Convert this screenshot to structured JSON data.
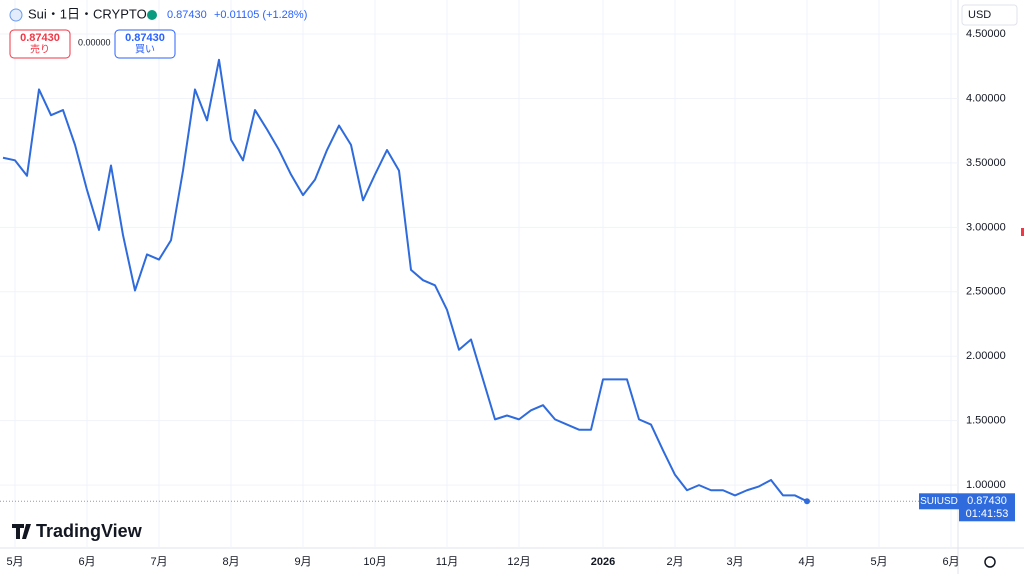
{
  "header": {
    "symbol": "Sui・1日・CRYPTO",
    "price": "0.87430",
    "change": "+0.01105 (+1.28%)",
    "sell_price": "0.87430",
    "sell_label": "売り",
    "spread": "0.00000",
    "buy_price": "0.87430",
    "buy_label": "買い",
    "currency": "USD",
    "logo": "TradingView",
    "last_price": "0.87430",
    "countdown": "01:41:53"
  },
  "chart_data": {
    "type": "line",
    "categories": [
      null,
      "5月",
      null,
      null,
      null,
      null,
      null,
      "6月",
      null,
      null,
      null,
      null,
      null,
      "7月",
      null,
      null,
      null,
      null,
      null,
      "8月",
      null,
      null,
      null,
      null,
      null,
      "9月",
      null,
      null,
      null,
      null,
      null,
      "10月",
      null,
      null,
      null,
      null,
      null,
      "11月",
      null,
      null,
      null,
      null,
      null,
      "12月",
      null,
      null,
      null,
      null,
      null,
      null,
      "2026",
      null,
      null,
      null,
      null,
      null,
      "2月",
      null,
      null,
      null,
      null,
      "3月",
      null,
      null,
      null,
      null,
      null,
      "4月",
      null,
      null,
      null,
      null,
      null,
      "5月",
      null,
      null,
      null,
      null,
      null,
      "6月"
    ],
    "series": [
      {
        "name": "SUIUSD",
        "color": "#2f6bdc",
        "values": [
          3.54,
          3.52,
          3.4,
          4.07,
          3.87,
          3.91,
          3.64,
          3.29,
          2.98,
          3.48,
          2.94,
          2.51,
          2.79,
          2.75,
          2.9,
          3.44,
          4.07,
          3.83,
          4.3,
          3.68,
          3.52,
          3.91,
          3.76,
          3.6,
          3.41,
          3.25,
          3.37,
          3.6,
          3.79,
          3.64,
          3.21,
          3.41,
          3.6,
          3.44,
          2.67,
          2.59,
          2.55,
          2.36,
          2.05,
          2.13,
          1.82,
          1.51,
          1.54,
          1.51,
          1.58,
          1.62,
          1.51,
          1.47,
          1.43,
          1.43,
          1.82,
          1.82,
          1.82,
          1.51,
          1.47,
          1.27,
          1.08,
          0.96,
          1.0,
          0.96,
          0.96,
          0.92,
          0.96,
          0.99,
          1.04,
          0.92,
          0.92,
          0.8743,
          null,
          null,
          null,
          null,
          null,
          null,
          null,
          null,
          null,
          null,
          null,
          null
        ]
      }
    ],
    "ylim": [
      0.512,
      4.764
    ],
    "yticks": [
      {
        "value": 1.0,
        "label": "1.00000"
      },
      {
        "value": 1.5,
        "label": "1.50000"
      },
      {
        "value": 2.0,
        "label": "2.00000"
      },
      {
        "value": 2.5,
        "label": "2.50000"
      },
      {
        "value": 3.0,
        "label": "3.00000"
      },
      {
        "value": 3.5,
        "label": "3.50000"
      },
      {
        "value": 4.0,
        "label": "4.00000"
      },
      {
        "value": 4.5,
        "label": "4.50000"
      }
    ],
    "grid": true
  }
}
